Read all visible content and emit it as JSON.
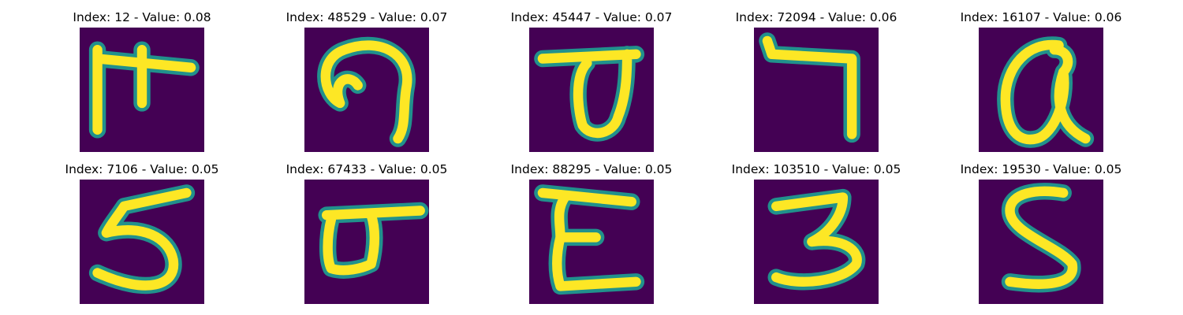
{
  "colors": {
    "background": "#440154",
    "teal": "#21918c",
    "yellow": "#fde725"
  },
  "panels": [
    {
      "title": "Index: 12 - Value: 0.08",
      "icon": "handwritten-glyph-1"
    },
    {
      "title": "Index: 48529 - Value: 0.07",
      "icon": "handwritten-glyph-2"
    },
    {
      "title": "Index: 45447 - Value: 0.07",
      "icon": "handwritten-glyph-3"
    },
    {
      "title": "Index: 72094 - Value: 0.06",
      "icon": "handwritten-glyph-4"
    },
    {
      "title": "Index: 16107 - Value: 0.06",
      "icon": "handwritten-glyph-5"
    },
    {
      "title": "Index: 7106 - Value: 0.05",
      "icon": "handwritten-glyph-6"
    },
    {
      "title": "Index: 67433 - Value: 0.05",
      "icon": "handwritten-glyph-7"
    },
    {
      "title": "Index: 88295 - Value: 0.05",
      "icon": "handwritten-glyph-8"
    },
    {
      "title": "Index: 103510 - Value: 0.05",
      "icon": "handwritten-glyph-9"
    },
    {
      "title": "Index: 19530 - Value: 0.05",
      "icon": "handwritten-glyph-10"
    }
  ]
}
